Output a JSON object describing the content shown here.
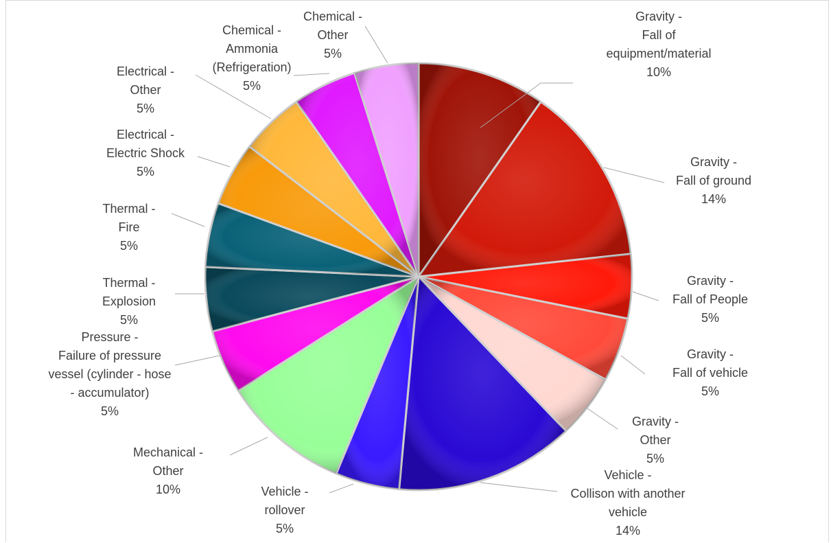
{
  "chart_data": {
    "type": "pie",
    "title": "",
    "legend": "none",
    "slices": [
      {
        "label": [
          "Gravity -",
          "Fall of",
          "equipment/material"
        ],
        "percent_label": "10%",
        "value": 10,
        "color": "#a01408"
      },
      {
        "label": [
          "Gravity -",
          "Fall of ground"
        ],
        "percent_label": "14%",
        "value": 14,
        "color": "#d21a0a"
      },
      {
        "label": [
          "Gravity -",
          "Fall of People"
        ],
        "percent_label": "5%",
        "value": 5,
        "color": "#ff1a0a"
      },
      {
        "label": [
          "Gravity -",
          "Fall of vehicle"
        ],
        "percent_label": "5%",
        "value": 5,
        "color": "#ff4a3a"
      },
      {
        "label": [
          "Gravity -",
          "Other"
        ],
        "percent_label": "5%",
        "value": 5,
        "color": "#ffd8d2"
      },
      {
        "label": [
          "Vehicle -",
          "Collison with another",
          "vehicle"
        ],
        "percent_label": "14%",
        "value": 14,
        "color": "#2a0ad4"
      },
      {
        "label": [
          "Vehicle -",
          "rollover"
        ],
        "percent_label": "5%",
        "value": 5,
        "color": "#3a1aff"
      },
      {
        "label": [
          "Mechanical -",
          "Other"
        ],
        "percent_label": "10%",
        "value": 10,
        "color": "#98ff98"
      },
      {
        "label": [
          "Pressure -",
          "Failure of pressure",
          "vessel (cylinder - hose",
          "- accumulator)"
        ],
        "percent_label": "5%",
        "value": 5,
        "color": "#ff0aee"
      },
      {
        "label": [
          "Thermal -",
          "Explosion"
        ],
        "percent_label": "5%",
        "value": 5,
        "color": "#0a4a5c"
      },
      {
        "label": [
          "Thermal -",
          "Fire"
        ],
        "percent_label": "5%",
        "value": 5,
        "color": "#0a6278"
      },
      {
        "label": [
          "Electrical -",
          "Electric Shock"
        ],
        "percent_label": "5%",
        "value": 5,
        "color": "#f89a0a"
      },
      {
        "label": [
          "Electrical -",
          "Other"
        ],
        "percent_label": "5%",
        "value": 5,
        "color": "#ffb83a"
      },
      {
        "label": [
          "Chemical -",
          "Ammonia",
          "(Refrigeration)"
        ],
        "percent_label": "5%",
        "value": 5,
        "color": "#e01aff"
      },
      {
        "label": [
          "Chemical -",
          "Other"
        ],
        "percent_label": "5%",
        "value": 5,
        "color": "#f0a0ff"
      }
    ]
  }
}
